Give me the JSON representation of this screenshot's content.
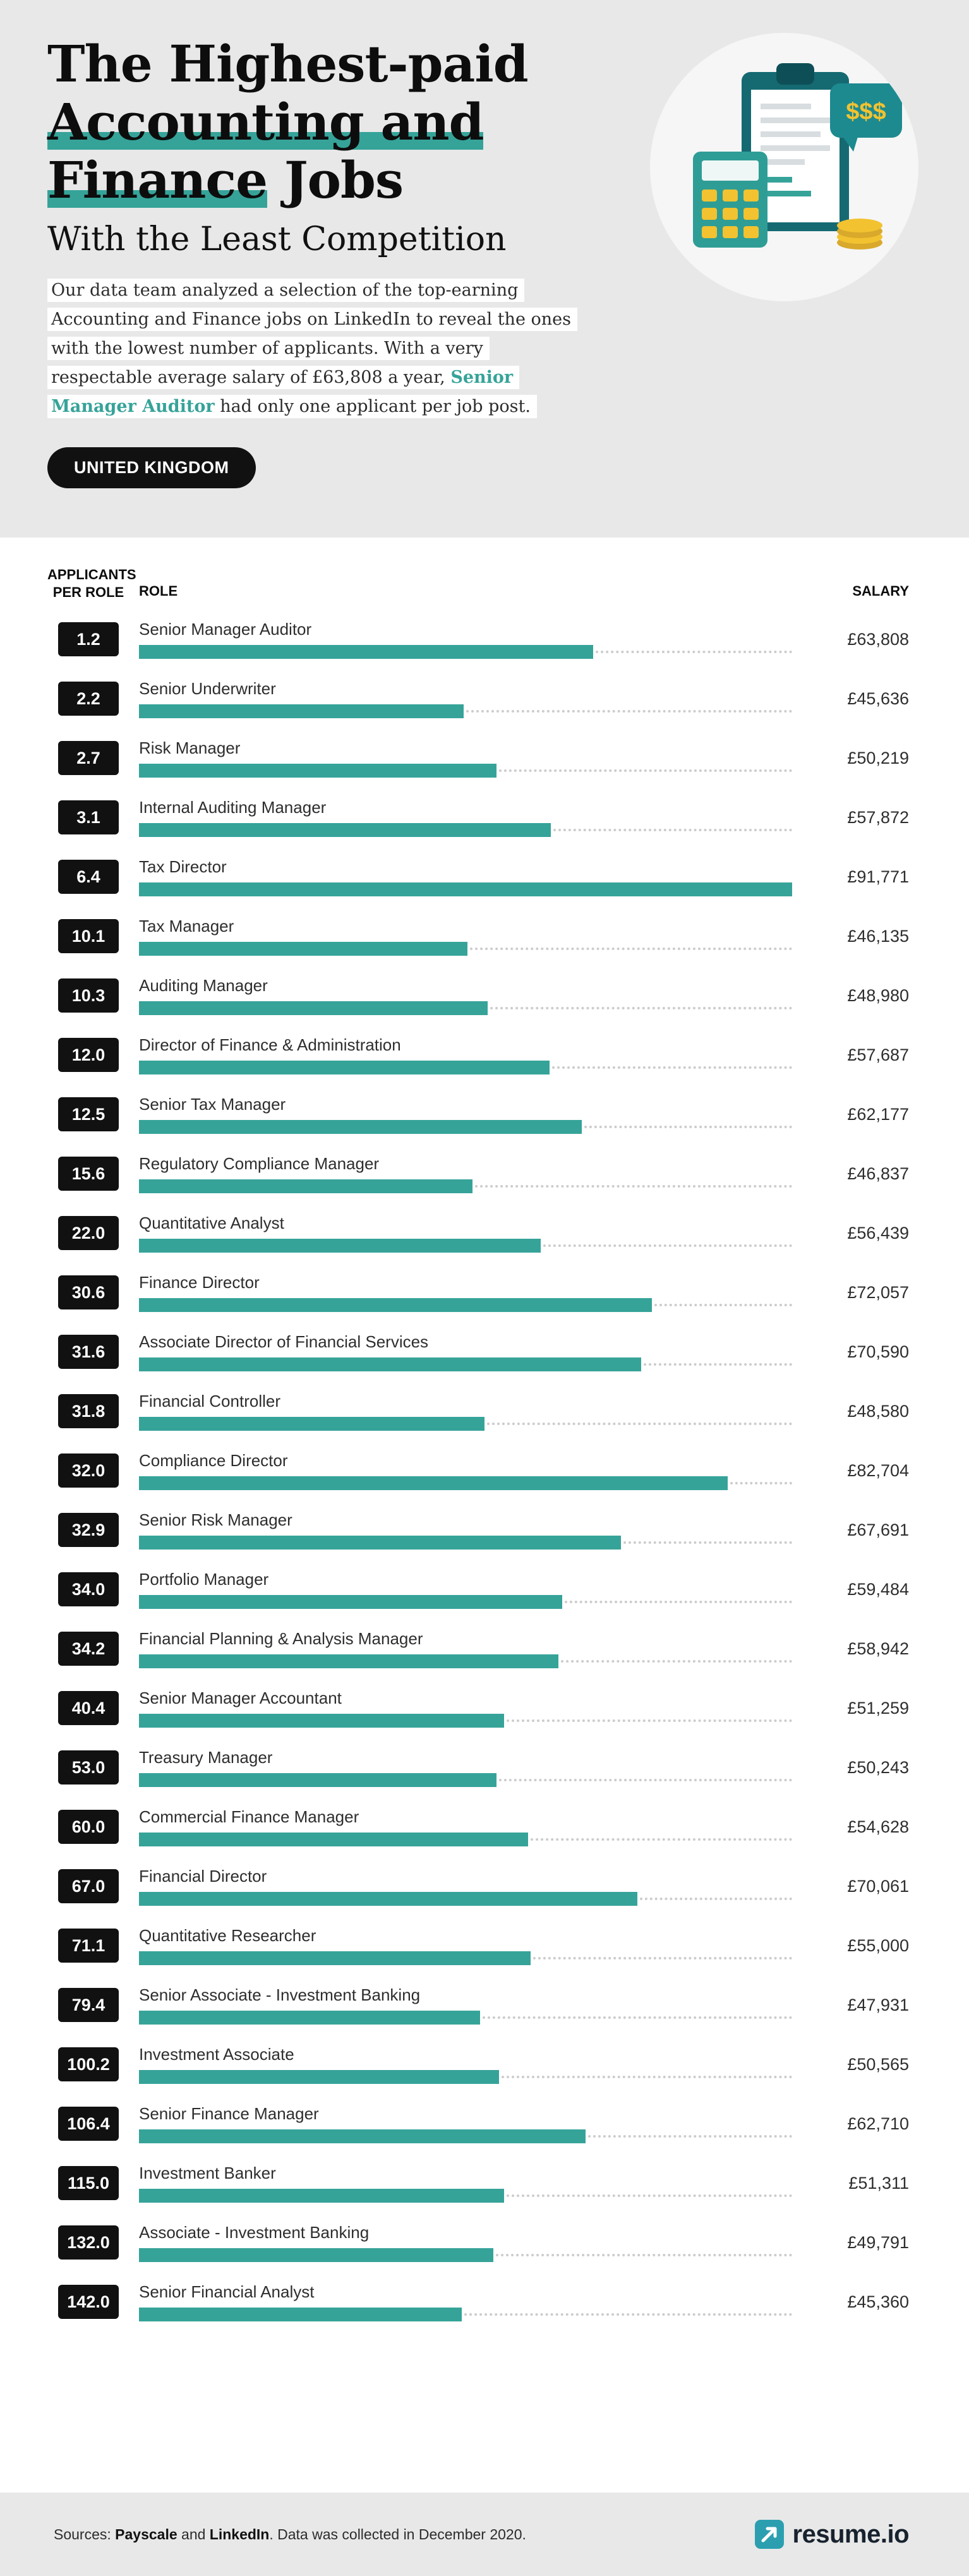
{
  "page": {
    "country_badge": "UNITED KINGDOM"
  },
  "header": {
    "title_line1": "The Highest-paid",
    "title_line2": "Accounting and",
    "title_line3_highlight": "Finance",
    "title_line3_rest": "Jobs",
    "subtitle": "With the Least Competition",
    "intro_pre": "Our data team analyzed a selection of the top-earning Accounting and Finance jobs on LinkedIn to reveal the ones with the lowest number of applicants. With a very respectable average salary of £63,808 a year, ",
    "intro_highlight": "Senior Manager Auditor",
    "intro_post": " had only one applicant per job post."
  },
  "columns": {
    "applicants_line1": "APPLICANTS",
    "applicants_line2": "PER ROLE",
    "role": "ROLE",
    "salary": "SALARY"
  },
  "illustration": {
    "bubble_text": "$$$"
  },
  "chart_data": {
    "type": "bar",
    "title": "The Highest-paid Accounting and Finance Jobs With the Least Competition",
    "xlabel": "",
    "ylabel": "",
    "max_salary": 91771,
    "rows": [
      {
        "applicants": "1.2",
        "role": "Senior Manager Auditor",
        "salary": 63808,
        "salary_label": "£63,808"
      },
      {
        "applicants": "2.2",
        "role": "Senior Underwriter",
        "salary": 45636,
        "salary_label": "£45,636"
      },
      {
        "applicants": "2.7",
        "role": "Risk Manager",
        "salary": 50219,
        "salary_label": "£50,219"
      },
      {
        "applicants": "3.1",
        "role": "Internal Auditing Manager",
        "salary": 57872,
        "salary_label": "£57,872"
      },
      {
        "applicants": "6.4",
        "role": "Tax Director",
        "salary": 91771,
        "salary_label": "£91,771"
      },
      {
        "applicants": "10.1",
        "role": "Tax Manager",
        "salary": 46135,
        "salary_label": "£46,135"
      },
      {
        "applicants": "10.3",
        "role": "Auditing Manager",
        "salary": 48980,
        "salary_label": "£48,980"
      },
      {
        "applicants": "12.0",
        "role": "Director of Finance & Administration",
        "salary": 57687,
        "salary_label": "£57,687"
      },
      {
        "applicants": "12.5",
        "role": "Senior Tax Manager",
        "salary": 62177,
        "salary_label": "£62,177"
      },
      {
        "applicants": "15.6",
        "role": "Regulatory Compliance Manager",
        "salary": 46837,
        "salary_label": "£46,837"
      },
      {
        "applicants": "22.0",
        "role": "Quantitative Analyst",
        "salary": 56439,
        "salary_label": "£56,439"
      },
      {
        "applicants": "30.6",
        "role": "Finance Director",
        "salary": 72057,
        "salary_label": "£72,057"
      },
      {
        "applicants": "31.6",
        "role": "Associate Director of Financial Services",
        "salary": 70590,
        "salary_label": "£70,590"
      },
      {
        "applicants": "31.8",
        "role": "Financial Controller",
        "salary": 48580,
        "salary_label": "£48,580"
      },
      {
        "applicants": "32.0",
        "role": "Compliance Director",
        "salary": 82704,
        "salary_label": "£82,704"
      },
      {
        "applicants": "32.9",
        "role": "Senior Risk Manager",
        "salary": 67691,
        "salary_label": "£67,691"
      },
      {
        "applicants": "34.0",
        "role": "Portfolio Manager",
        "salary": 59484,
        "salary_label": "£59,484"
      },
      {
        "applicants": "34.2",
        "role": "Financial Planning & Analysis Manager",
        "salary": 58942,
        "salary_label": "£58,942"
      },
      {
        "applicants": "40.4",
        "role": "Senior Manager Accountant",
        "salary": 51259,
        "salary_label": "£51,259"
      },
      {
        "applicants": "53.0",
        "role": "Treasury Manager",
        "salary": 50243,
        "salary_label": "£50,243"
      },
      {
        "applicants": "60.0",
        "role": "Commercial Finance Manager",
        "salary": 54628,
        "salary_label": "£54,628"
      },
      {
        "applicants": "67.0",
        "role": "Financial Director",
        "salary": 70061,
        "salary_label": "£70,061"
      },
      {
        "applicants": "71.1",
        "role": "Quantitative Researcher",
        "salary": 55000,
        "salary_label": "£55,000"
      },
      {
        "applicants": "79.4",
        "role": "Senior Associate - Investment Banking",
        "salary": 47931,
        "salary_label": "£47,931"
      },
      {
        "applicants": "100.2",
        "role": "Investment Associate",
        "salary": 50565,
        "salary_label": "£50,565"
      },
      {
        "applicants": "106.4",
        "role": "Senior Finance Manager",
        "salary": 62710,
        "salary_label": "£62,710"
      },
      {
        "applicants": "115.0",
        "role": "Investment Banker",
        "salary": 51311,
        "salary_label": "£51,311"
      },
      {
        "applicants": "132.0",
        "role": "Associate - Investment Banking",
        "salary": 49791,
        "salary_label": "£49,791"
      },
      {
        "applicants": "142.0",
        "role": "Senior Financial Analyst",
        "salary": 45360,
        "salary_label": "£45,360"
      }
    ]
  },
  "footer": {
    "sources_prefix": "Sources: ",
    "source1": "Payscale",
    "sources_mid": " and ",
    "source2": "LinkedIn",
    "sources_suffix": ". Data was collected in December 2020.",
    "logo_text": "resume.io"
  },
  "colors": {
    "accent_teal": "#36a399",
    "header_bg": "#e8e8e8",
    "badge_bg": "#111111",
    "gold": "#f2c230"
  }
}
